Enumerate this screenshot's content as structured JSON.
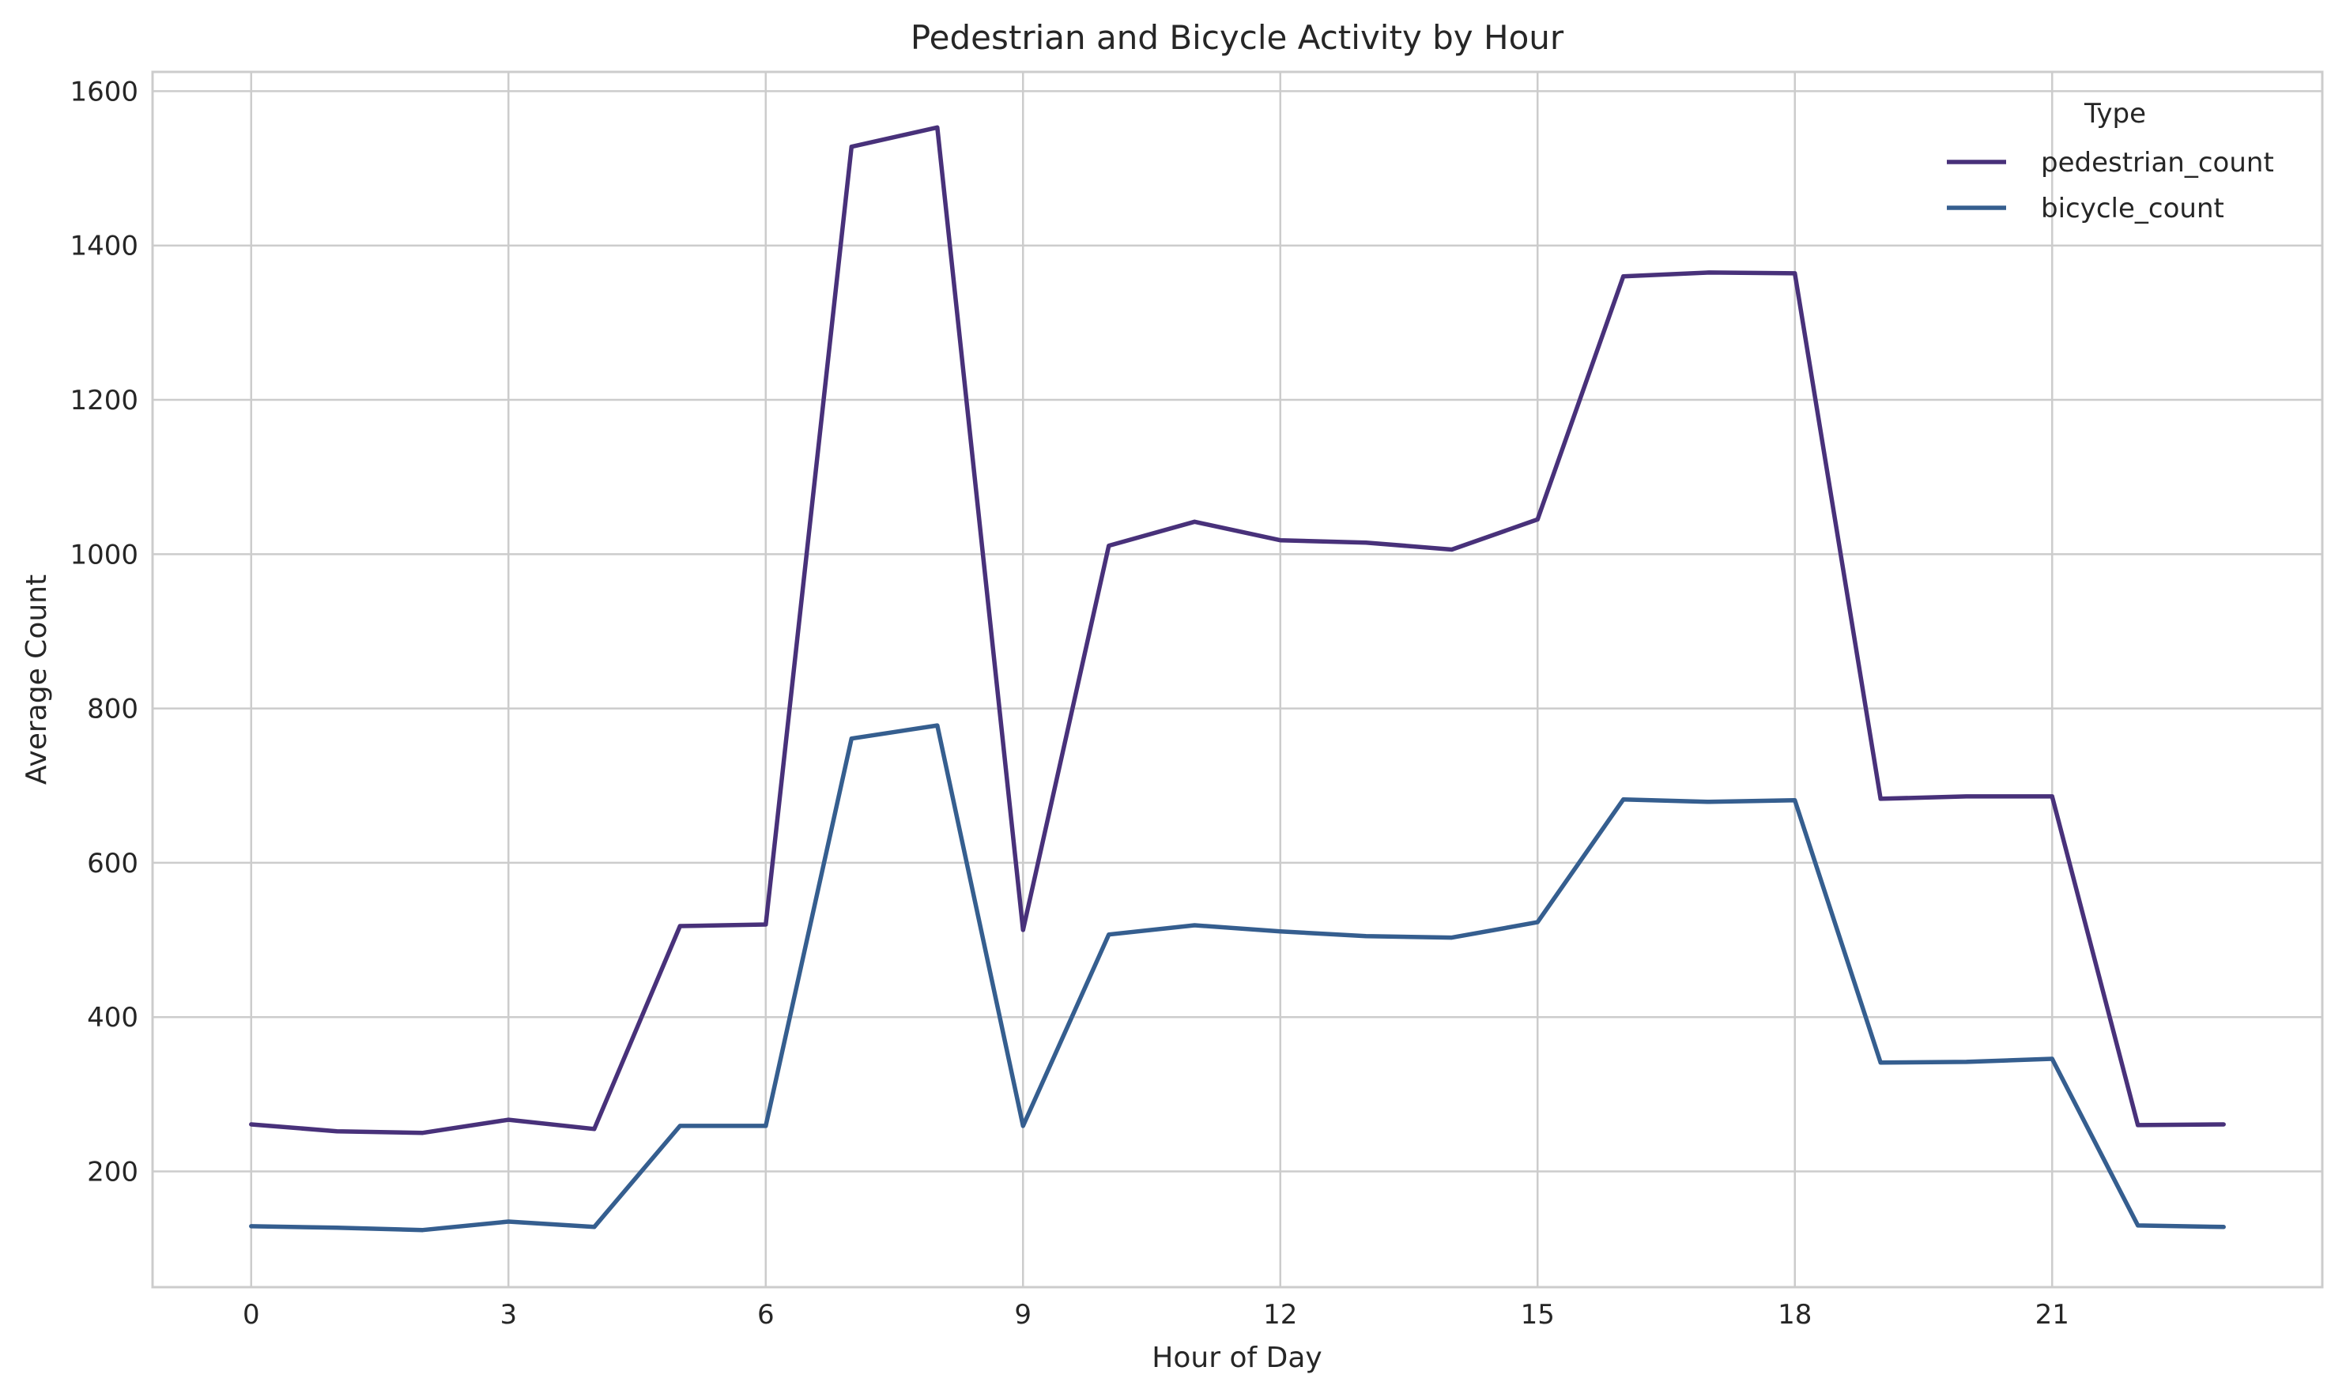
{
  "chart_data": {
    "type": "line",
    "title": "Pedestrian and Bicycle Activity by Hour",
    "xlabel": "Hour of Day",
    "ylabel": "Average Count",
    "x": [
      0,
      1,
      2,
      3,
      4,
      5,
      6,
      7,
      8,
      9,
      10,
      11,
      12,
      13,
      14,
      15,
      16,
      17,
      18,
      19,
      20,
      21,
      22,
      23
    ],
    "xlim": [
      -1.15,
      24.15
    ],
    "ylim": [
      50,
      1625
    ],
    "xticks": [
      0,
      3,
      6,
      9,
      12,
      15,
      18,
      21
    ],
    "yticks": [
      200,
      400,
      600,
      800,
      1000,
      1200,
      1400,
      1600
    ],
    "grid": true,
    "legend": {
      "title": "Type",
      "placement": "top-right"
    },
    "series": [
      {
        "name": "pedestrian_count",
        "color": "#48317a",
        "values": [
          261,
          252,
          250,
          267,
          255,
          518,
          520,
          1528,
          1553,
          513,
          1011,
          1042,
          1018,
          1015,
          1006,
          1045,
          1360,
          1365,
          1364,
          683,
          686,
          686,
          260,
          261
        ]
      },
      {
        "name": "bicycle_count",
        "color": "#355e8f",
        "values": [
          129,
          127,
          124,
          135,
          128,
          259,
          259,
          761,
          778,
          259,
          507,
          519,
          511,
          505,
          503,
          523,
          682,
          679,
          681,
          341,
          342,
          346,
          130,
          128
        ]
      }
    ]
  }
}
